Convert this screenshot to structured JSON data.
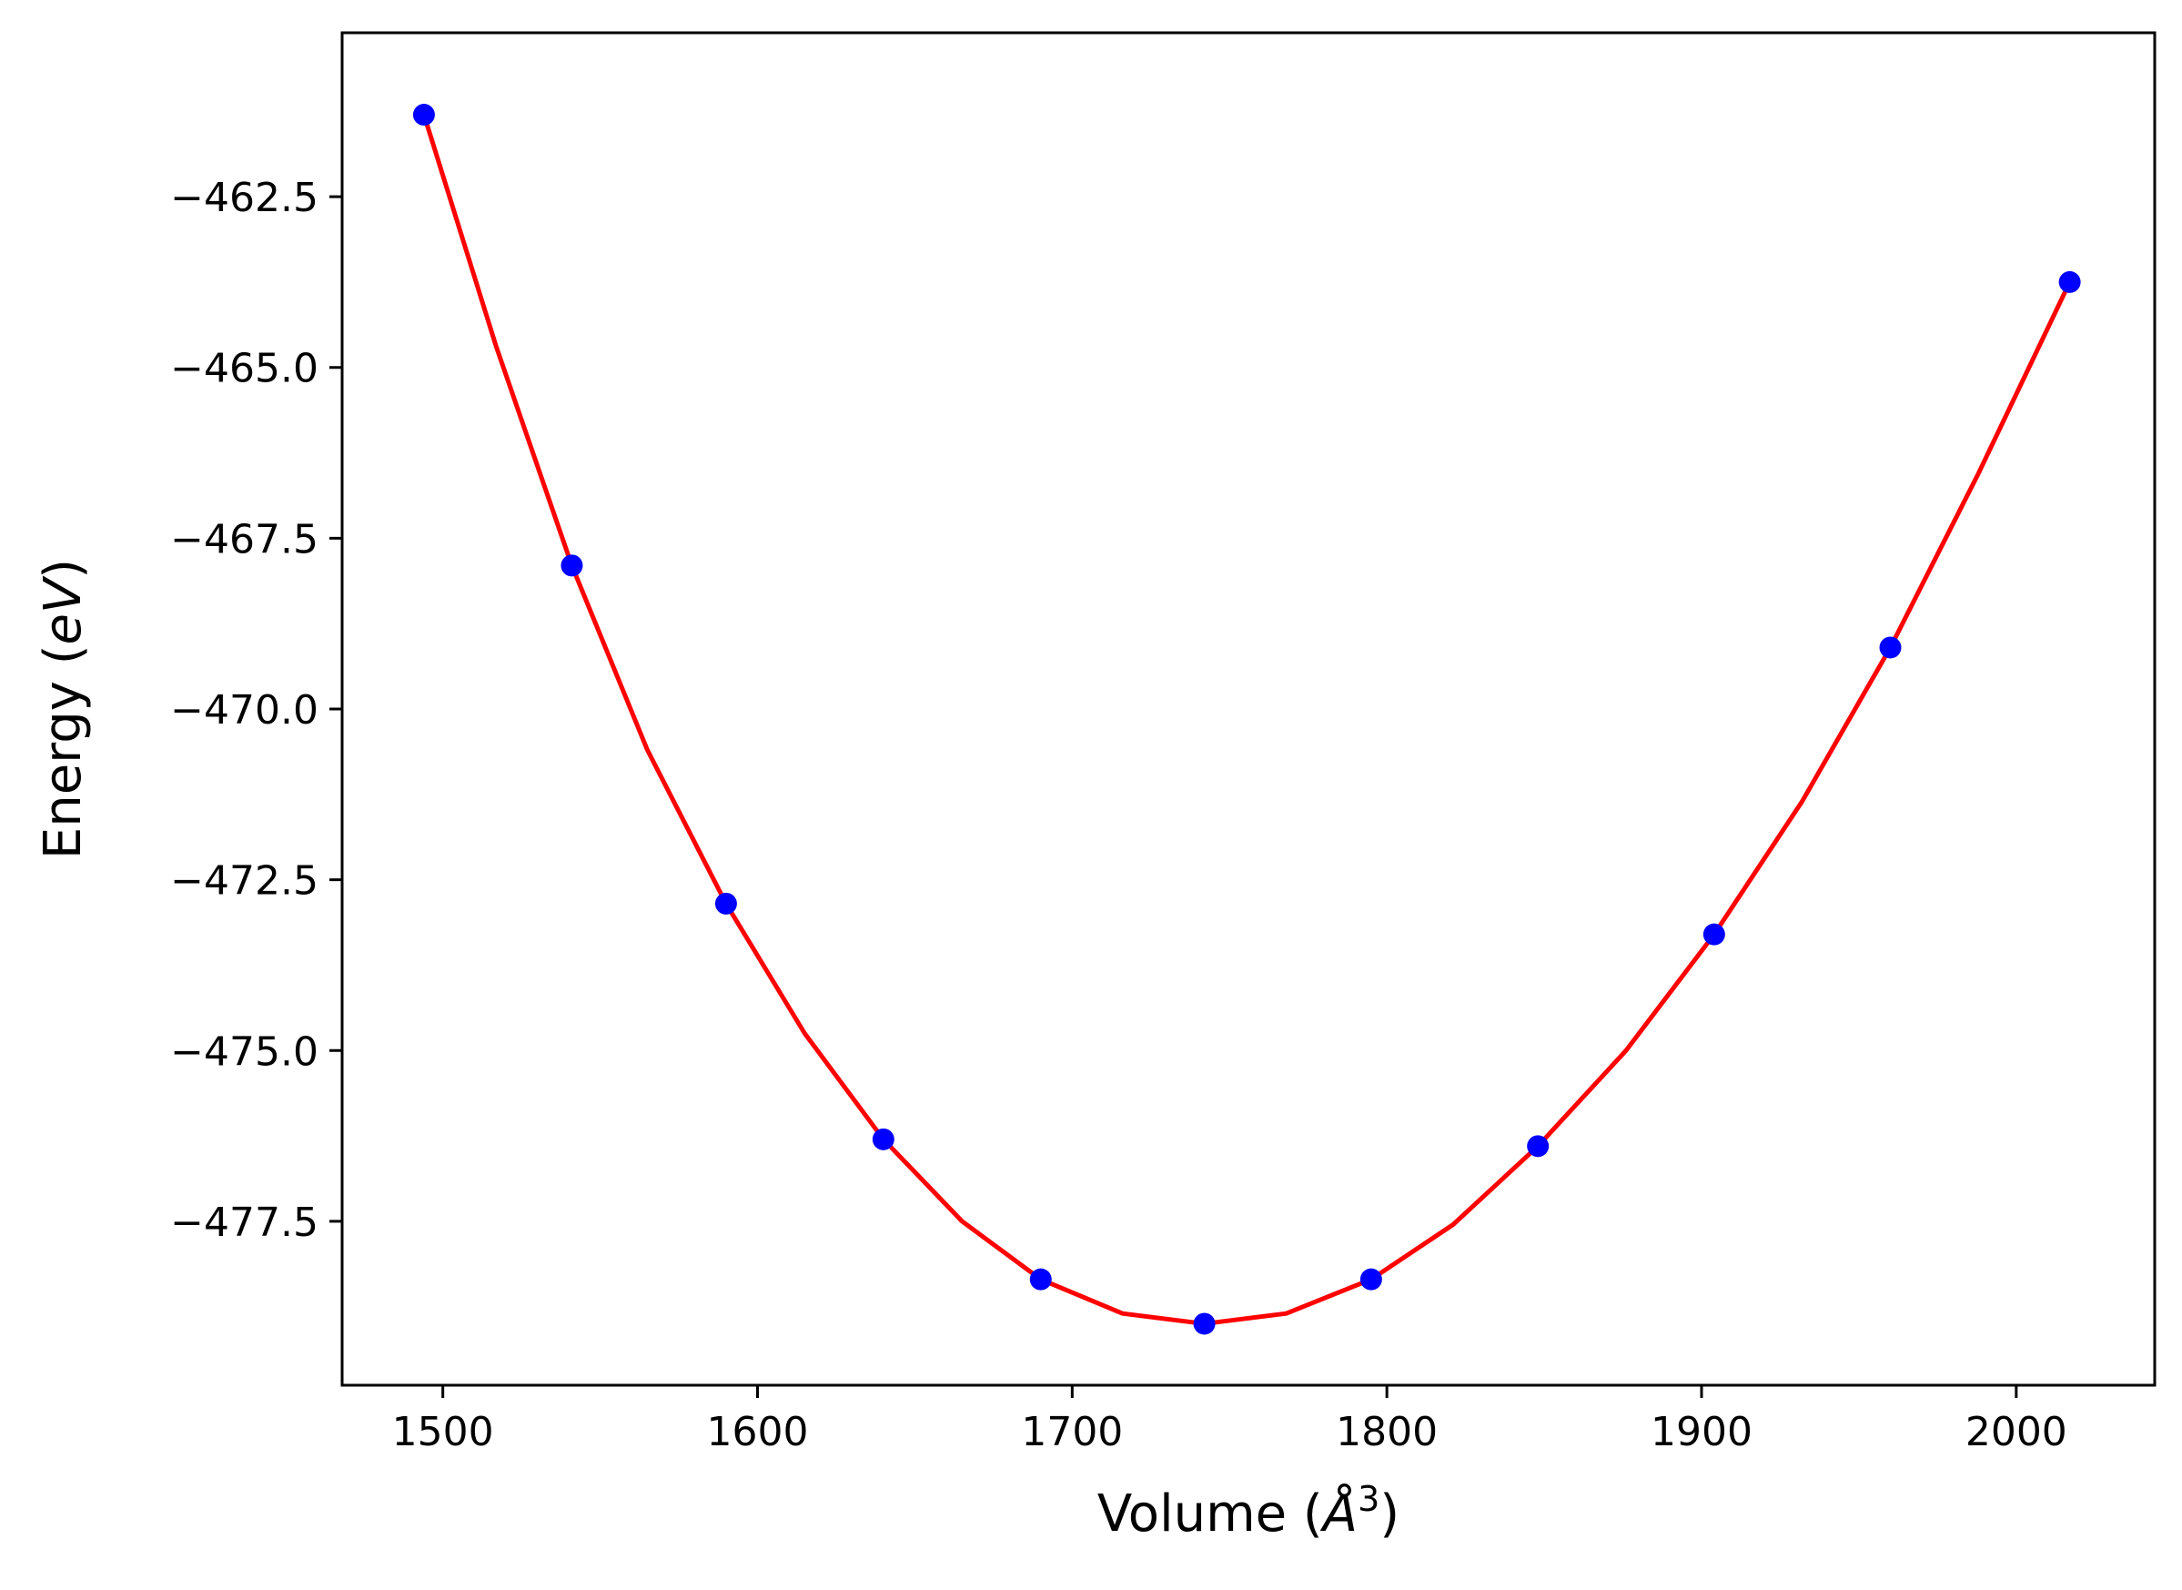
{
  "chart_data": {
    "type": "scatter",
    "xlabel_parts": {
      "main": "Volume (",
      "italic": "Å",
      "sup": "3",
      "close": ")"
    },
    "ylabel_parts": {
      "main": "Energy (",
      "italic": "eV",
      "close": ")"
    },
    "xlim": [
      1468,
      2044
    ],
    "ylim": [
      -479.9,
      -460.1
    ],
    "x_ticks": [
      1500,
      1600,
      1700,
      1800,
      1900,
      2000
    ],
    "x_tick_labels": [
      "1500",
      "1600",
      "1700",
      "1800",
      "1900",
      "2000"
    ],
    "y_ticks": [
      -462.5,
      -465.0,
      -467.5,
      -470.0,
      -472.5,
      -475.0,
      -477.5
    ],
    "y_tick_labels": [
      "−462.5",
      "−465.0",
      "−467.5",
      "−470.0",
      "−472.5",
      "−475.0",
      "−477.5"
    ],
    "series": [
      {
        "kind": "points",
        "color": "#0000ff",
        "x": [
          1494,
          1541,
          1590,
          1640,
          1690,
          1742,
          1795,
          1848,
          1904,
          1960,
          2017
        ],
        "y": [
          -461.3,
          -467.9,
          -472.85,
          -476.3,
          -478.35,
          -479.0,
          -478.35,
          -476.4,
          -473.3,
          -469.1,
          -463.75
        ]
      },
      {
        "kind": "line",
        "color": "#ff0000",
        "x": [
          1494,
          1517,
          1541,
          1565,
          1590,
          1615,
          1640,
          1665,
          1690,
          1716,
          1742,
          1768,
          1795,
          1821,
          1848,
          1876,
          1904,
          1932,
          1960,
          1988,
          2017
        ],
        "y": [
          -461.3,
          -464.7,
          -467.9,
          -470.6,
          -472.85,
          -474.75,
          -476.3,
          -477.5,
          -478.35,
          -478.85,
          -479.0,
          -478.85,
          -478.35,
          -477.55,
          -476.4,
          -475.0,
          -473.3,
          -471.35,
          -469.1,
          -466.55,
          -463.75
        ]
      }
    ]
  }
}
